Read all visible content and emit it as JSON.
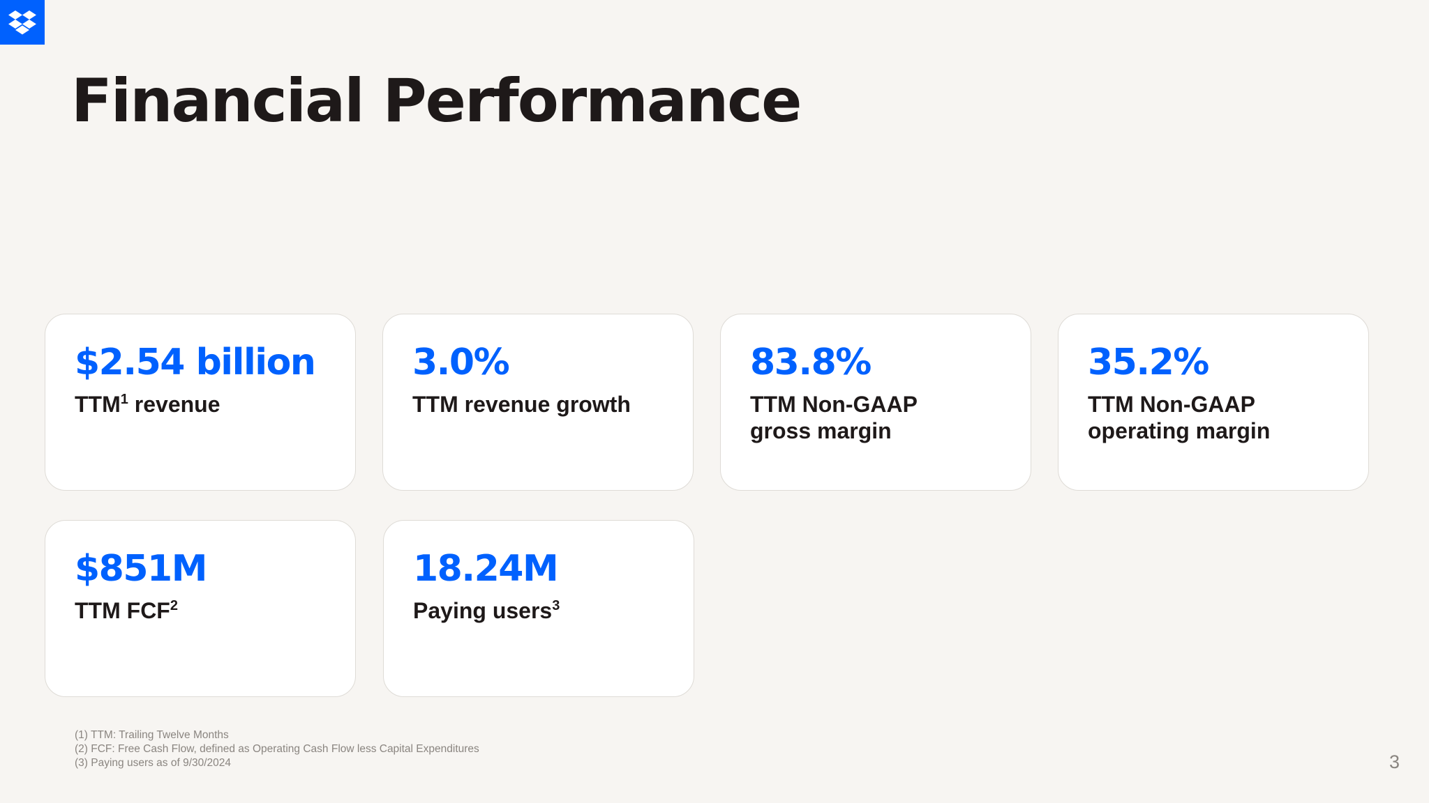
{
  "brand": {
    "logo_icon": "dropbox-logo-icon",
    "accent_color": "#0061fe"
  },
  "title": "Financial Performance",
  "cards": [
    {
      "value": "$2.54 billion",
      "label": "TTM",
      "sup": "1",
      "label_after": " revenue"
    },
    {
      "value": "3.0%",
      "label": "TTM revenue growth",
      "sup": "",
      "label_after": ""
    },
    {
      "value": "83.8%",
      "label": "TTM Non-GAAP\ngross margin",
      "sup": "",
      "label_after": ""
    },
    {
      "value": "35.2%",
      "label": "TTM Non-GAAP\noperating margin",
      "sup": "",
      "label_after": ""
    },
    {
      "value": "$851M",
      "label": "TTM FCF",
      "sup": "2",
      "label_after": ""
    },
    {
      "value": "18.24M",
      "label": "Paying users",
      "sup": "3",
      "label_after": ""
    }
  ],
  "footnotes": [
    "(1) TTM: Trailing Twelve Months",
    "(2) FCF: Free Cash Flow, defined as Operating Cash Flow less Capital Expenditures",
    "(3) Paying users as of 9/30/2024"
  ],
  "page_number": "3"
}
